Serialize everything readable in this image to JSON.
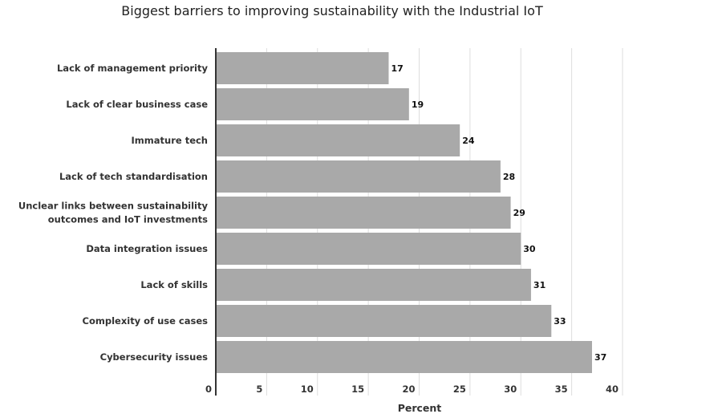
{
  "chart_data": {
    "type": "bar",
    "orientation": "horizontal",
    "title": "Biggest barriers to improving sustainability with the Industrial IoT",
    "xlabel": "Percent",
    "ylabel": "",
    "xlim": [
      0,
      40
    ],
    "xticks": [
      0,
      5,
      10,
      15,
      20,
      25,
      30,
      35,
      40
    ],
    "grid": true,
    "bar_color": "#a9a9a9",
    "categories": [
      [
        "Lack of management priority"
      ],
      [
        "Lack of clear business case"
      ],
      [
        "Immature tech"
      ],
      [
        "Lack of tech standardisation"
      ],
      [
        "Unclear links between sustainability",
        "outcomes and IoT investments"
      ],
      [
        "Data integration issues"
      ],
      [
        "Lack of skills"
      ],
      [
        "Complexity of use cases"
      ],
      [
        "Cybersecurity issues"
      ]
    ],
    "values": [
      17,
      19,
      24,
      28,
      29,
      30,
      31,
      33,
      37
    ]
  }
}
